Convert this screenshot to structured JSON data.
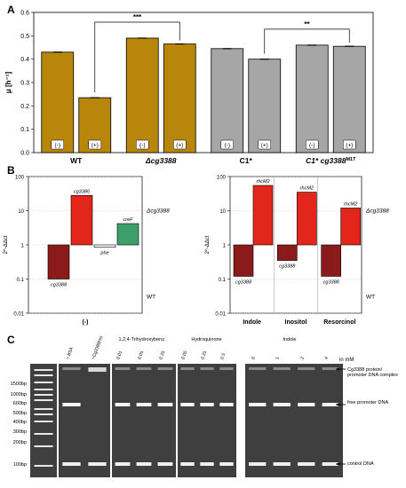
{
  "panel_labels": {
    "a": "A",
    "b": "B",
    "c": "C"
  },
  "chart_data": [
    {
      "type": "bar",
      "panel": "A",
      "ylabel": "μ [h⁻¹]",
      "ylim": [
        0,
        0.6
      ],
      "yticks": [
        "0.0",
        "0.1",
        "0.2",
        "0.3",
        "0.4",
        "0.5",
        "0.6"
      ],
      "bar_labels": [
        "(-)",
        "(+)",
        "(-)",
        "(+)",
        "(-)",
        "(+)",
        "(-)",
        "(+)"
      ],
      "groups": [
        {
          "label": "WT",
          "italic": false,
          "values": [
            0.43,
            0.235
          ],
          "color": "#b8860b"
        },
        {
          "label": "Δcg3388",
          "italic": true,
          "values": [
            0.49,
            0.465
          ],
          "color": "#b8860b"
        },
        {
          "label": "C1*",
          "italic": false,
          "values": [
            0.445,
            0.4
          ],
          "color": "#a6a6a6"
        },
        {
          "label": "C1* cg3388",
          "sup": "M1T",
          "italic": true,
          "values": [
            0.46,
            0.455
          ],
          "color": "#a6a6a6"
        }
      ],
      "significance": [
        {
          "text": "***",
          "from_group": 0,
          "to_group": 1
        },
        {
          "text": "**",
          "from_group": 2,
          "to_group": 3
        }
      ]
    },
    {
      "type": "bar",
      "panel": "B-left",
      "ylabel": "2^-ΔΔct",
      "yscale": "log",
      "yticks": [
        "0.01",
        "0.1",
        "1",
        "10",
        "100"
      ],
      "ylim": [
        0.01,
        100
      ],
      "xlabel": "(-)",
      "right_labels": {
        "upper": "Δcg3388",
        "lower": "WT"
      },
      "bars": [
        {
          "gene": "cg3388",
          "value": 0.1,
          "color": "#8b1a1a",
          "label_pos": "below"
        },
        {
          "gene": "cg3386",
          "value": 28,
          "color": "#e3261b",
          "label_pos": "above"
        },
        {
          "gene": "phe",
          "value": 0.85,
          "color": "#ffffff",
          "label_pos": "below"
        },
        {
          "gene": "creF",
          "value": 4.2,
          "color": "#3e9e6b",
          "label_pos": "above"
        }
      ]
    },
    {
      "type": "bar",
      "panel": "B-right",
      "ylabel": "2^-ΔΔct",
      "yscale": "log",
      "yticks": [
        "0.01",
        "0.1",
        "1",
        "10",
        "100"
      ],
      "ylim": [
        0.01,
        100
      ],
      "right_labels": {
        "upper": "Δcg3388",
        "lower": "WT"
      },
      "categories": [
        "Indole",
        "Inositol",
        "Resorcinol"
      ],
      "series": [
        {
          "name": "cg3388",
          "values": [
            0.12,
            0.35,
            0.12
          ],
          "color": "#8b1a1a"
        },
        {
          "name": "rhcM2",
          "values": [
            55,
            35,
            12
          ],
          "color": "#e3261b"
        }
      ]
    }
  ],
  "gel": {
    "headers": {
      "g3": "1,2,4-Trihydroxybenz.",
      "g4": "Hydroquinone",
      "g5": "Indole",
      "unit": "in mM"
    },
    "g2_lanes": [
      "+ BSA",
      "+Cg3388His"
    ],
    "g3_lanes": [
      "0.01",
      "0.05",
      "0.25"
    ],
    "g4_lanes": [
      "0.05",
      "0.25",
      "0.5"
    ],
    "g5_lanes": [
      "0",
      "1",
      "2",
      "4"
    ],
    "sizes": [
      "1500bp",
      "1000bp",
      "600bp",
      "500bp",
      "400bp",
      "300bp",
      "200bp",
      "100bp"
    ],
    "right_labels": {
      "complex": "Cg3388 protein/ promoter DNA complex",
      "free": "free promoter DNA",
      "control": "control DNA"
    }
  }
}
